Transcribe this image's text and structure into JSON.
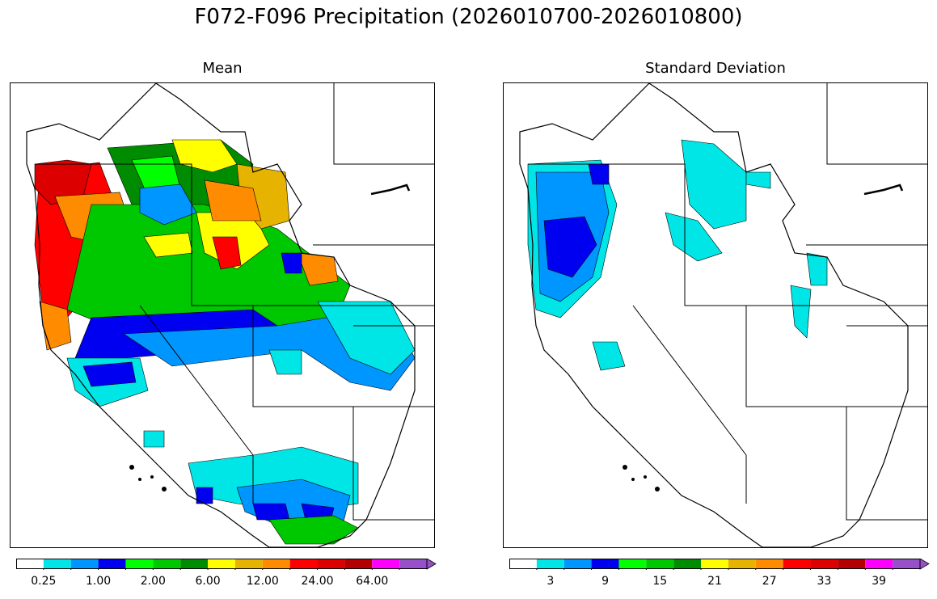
{
  "title": "F072-F096 Precipitation (2026010700-2026010800)",
  "panels": [
    {
      "id": "mean",
      "title": "Mean",
      "colorbar": {
        "colors": [
          "#ffffff",
          "#00e6e6",
          "#0096ff",
          "#0000f0",
          "#00ff00",
          "#00c800",
          "#008c00",
          "#ffff00",
          "#e6b400",
          "#ff8c00",
          "#ff0000",
          "#dc0000",
          "#b40000",
          "#ff00ff",
          "#9650c8"
        ],
        "tick_labels": [
          "0.25",
          "1.00",
          "2.00",
          "6.00",
          "12.00",
          "24.00",
          "64.00"
        ]
      }
    },
    {
      "id": "std",
      "title": "Standard Deviation",
      "colorbar": {
        "colors": [
          "#ffffff",
          "#00e6e6",
          "#0096ff",
          "#0000f0",
          "#00ff00",
          "#00c800",
          "#008c00",
          "#ffff00",
          "#e6b400",
          "#ff8c00",
          "#ff0000",
          "#dc0000",
          "#b40000",
          "#ff00ff",
          "#9650c8"
        ],
        "tick_labels": [
          "3",
          "9",
          "15",
          "21",
          "27",
          "33",
          "39"
        ]
      }
    }
  ]
}
